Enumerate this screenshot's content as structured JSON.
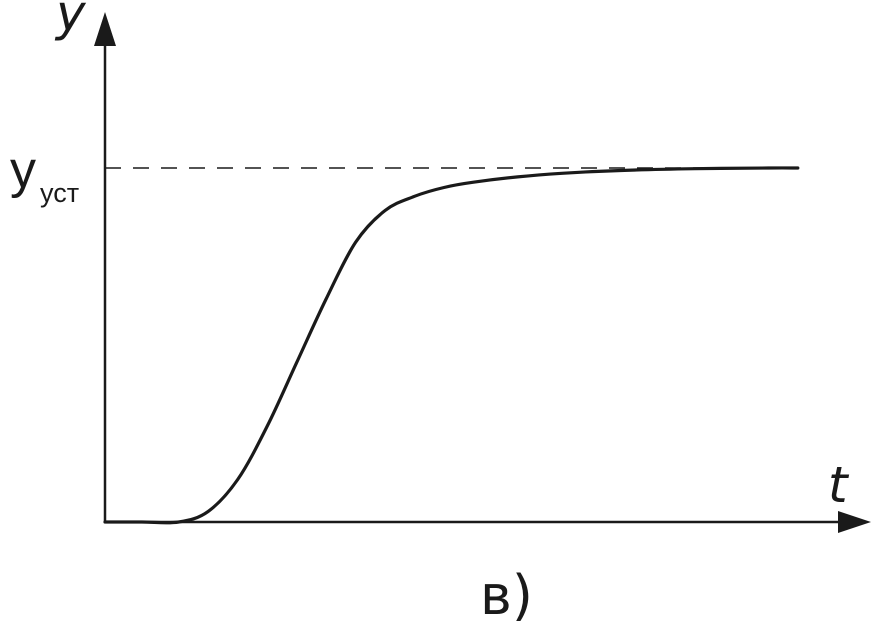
{
  "chart_data": {
    "type": "line",
    "x_axis_label": "t",
    "y_axis_label": "y",
    "reference_level": {
      "symbol": "y",
      "subscript": "уст",
      "value": 1.0,
      "style": "dashed"
    },
    "panel_label": "в)",
    "ylim": [
      0,
      1.0
    ],
    "xlim": [
      0,
      1.0
    ],
    "series": [
      {
        "x": [
          0.0,
          0.05,
          0.1,
          0.14,
          0.18,
          0.22,
          0.26,
          0.3,
          0.34,
          0.38,
          0.42,
          0.46,
          0.5,
          0.56,
          0.62,
          0.7,
          0.8,
          0.9,
          0.94
        ],
        "y": [
          0.0,
          0.0,
          0.0,
          0.03,
          0.12,
          0.27,
          0.45,
          0.63,
          0.79,
          0.88,
          0.92,
          0.945,
          0.96,
          0.975,
          0.985,
          0.993,
          0.998,
          1.0,
          1.0
        ]
      }
    ],
    "grid": false
  }
}
